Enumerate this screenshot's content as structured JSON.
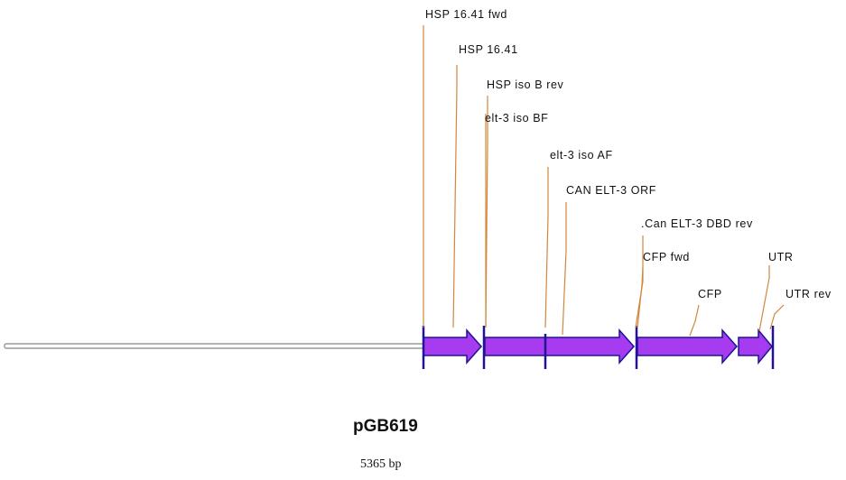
{
  "diagram": {
    "plasmid_name": "pGB619",
    "plasmid_size": "5365 bp",
    "feature_labels": [
      "HSP 16.41 fwd",
      "HSP 16.41",
      "HSP iso B rev",
      "elt-3 iso BF",
      "elt-3 iso AF",
      "CAN ELT-3 ORF",
      ".Can ELT-3 DBD rev",
      "CFP fwd",
      "UTR",
      "CFP",
      "UTR rev"
    ],
    "features": [
      {
        "name": "HSP 16.41",
        "kind": "arrow"
      },
      {
        "name": "CAN ELT-3 ORF",
        "kind": "arrow"
      },
      {
        "name": "CFP",
        "kind": "arrow"
      },
      {
        "name": "UTR",
        "kind": "arrow"
      }
    ],
    "colors": {
      "feature_fill": "#a63bf0",
      "feature_border": "#1f1496",
      "leader_line": "#d2873a",
      "backbone": "#9a9a9a"
    }
  }
}
